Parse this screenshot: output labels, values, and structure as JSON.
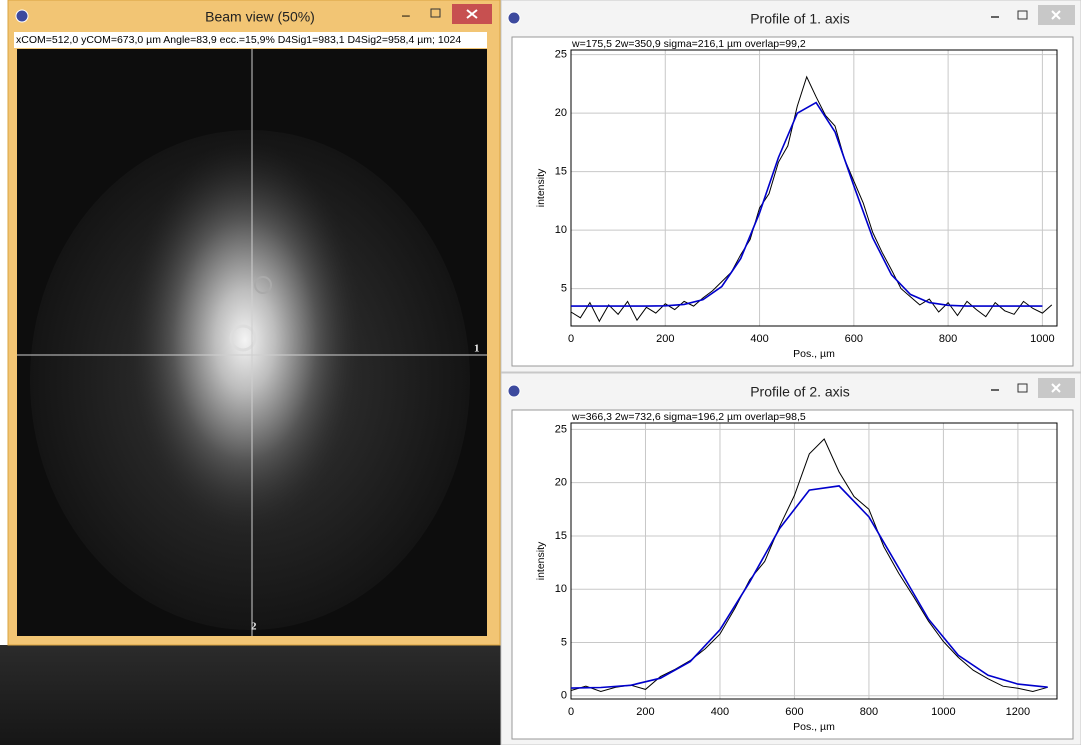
{
  "beam_window": {
    "title": "Beam view (50%)",
    "info": "xCOM=512,0 yCOM=673,0 µm Angle=83,9 ecc.=15,9% D4Sig1=983,1  D4Sig2=958,4 µm;  1024",
    "axis_label_1": "1",
    "axis_label_2": "2"
  },
  "profiles": [
    {
      "title": "Profile of 1. axis",
      "stats": "w=175,5  2w=350,9  sigma=216,1 µm  overlap=99,2",
      "chart": {
        "type": "line",
        "xlabel": "Pos., µm",
        "ylabel": "intensity",
        "xlim": [
          0,
          1031
        ],
        "ylim": [
          1.8,
          25.4
        ],
        "xticks": [
          0,
          200,
          400,
          600,
          800,
          1000
        ],
        "yticks": [
          5,
          10,
          15,
          20,
          25
        ],
        "grid": true,
        "series": [
          {
            "color": "#000000",
            "x": [
              0,
              20,
              40,
              60,
              80,
              100,
              120,
              140,
              160,
              180,
              200,
              220,
              240,
              260,
              280,
              300,
              320,
              340,
              360,
              380,
              400,
              420,
              440,
              460,
              480,
              500,
              520,
              540,
              560,
              580,
              600,
              620,
              640,
              660,
              680,
              700,
              720,
              740,
              760,
              780,
              800,
              820,
              840,
              860,
              880,
              900,
              920,
              940,
              960,
              980,
              1000,
              1020
            ],
            "values": [
              3.0,
              2.5,
              3.8,
              2.2,
              3.6,
              2.8,
              3.9,
              2.3,
              3.4,
              2.9,
              3.7,
              3.2,
              3.9,
              3.5,
              4.2,
              4.8,
              5.6,
              6.4,
              7.9,
              9.2,
              11.9,
              13.1,
              15.8,
              17.2,
              20.6,
              23.1,
              21.4,
              19.8,
              18.9,
              16.1,
              14.2,
              12.3,
              9.8,
              8.1,
              6.6,
              5.0,
              4.3,
              3.6,
              4.1,
              3.0,
              3.8,
              2.7,
              3.9,
              3.2,
              2.6,
              3.8,
              3.1,
              2.8,
              3.9,
              3.3,
              2.9,
              3.6
            ]
          },
          {
            "color": "#0000cc",
            "x": [
              0,
              40,
              80,
              120,
              160,
              200,
              240,
              280,
              320,
              360,
              400,
              440,
              480,
              520,
              560,
              600,
              640,
              680,
              720,
              760,
              800,
              840,
              880,
              920,
              960,
              1000
            ],
            "values": [
              3.5,
              3.5,
              3.5,
              3.5,
              3.5,
              3.53,
              3.65,
              4.06,
              5.18,
              7.56,
              11.48,
              16.2,
              20.0,
              20.9,
              18.4,
              13.8,
              9.34,
              6.18,
              4.5,
              3.8,
              3.57,
              3.5,
              3.5,
              3.5,
              3.5,
              3.5
            ]
          }
        ]
      }
    },
    {
      "title": "Profile of 2. axis",
      "stats": "w=366,3  2w=732,6  sigma=196,2 µm  overlap=98,5",
      "chart": {
        "type": "line",
        "xlabel": "Pos., µm",
        "ylabel": "intensity",
        "xlim": [
          0,
          1305
        ],
        "ylim": [
          -0.3,
          25.6
        ],
        "xticks": [
          0,
          200,
          400,
          600,
          800,
          1000,
          1200
        ],
        "yticks": [
          0,
          5,
          10,
          15,
          20,
          25
        ],
        "grid": true,
        "series": [
          {
            "color": "#000000",
            "x": [
              0,
              40,
              80,
              120,
              160,
              200,
              240,
              280,
              320,
              360,
              400,
              440,
              480,
              520,
              560,
              600,
              640,
              680,
              720,
              760,
              800,
              840,
              880,
              920,
              960,
              1000,
              1040,
              1080,
              1120,
              1160,
              1200,
              1240,
              1280
            ],
            "values": [
              0.5,
              0.9,
              0.4,
              0.8,
              1.0,
              0.6,
              1.8,
              2.5,
              3.3,
              4.4,
              5.8,
              8.2,
              10.9,
              12.6,
              15.9,
              18.8,
              22.7,
              24.1,
              21.0,
              18.7,
              17.5,
              14.0,
              11.5,
              9.3,
              7.0,
              5.1,
              3.6,
              2.4,
              1.6,
              0.9,
              0.7,
              0.4,
              0.8
            ]
          },
          {
            "color": "#0000cc",
            "x": [
              0,
              80,
              160,
              240,
              320,
              400,
              480,
              560,
              640,
              720,
              800,
              880,
              960,
              1040,
              1120,
              1200,
              1280
            ],
            "values": [
              0.72,
              0.78,
              0.99,
              1.65,
              3.21,
              6.2,
              10.7,
              15.7,
              19.3,
              19.7,
              16.8,
              12.0,
              7.2,
              3.8,
              1.92,
              1.1,
              0.81
            ]
          }
        ]
      }
    }
  ]
}
